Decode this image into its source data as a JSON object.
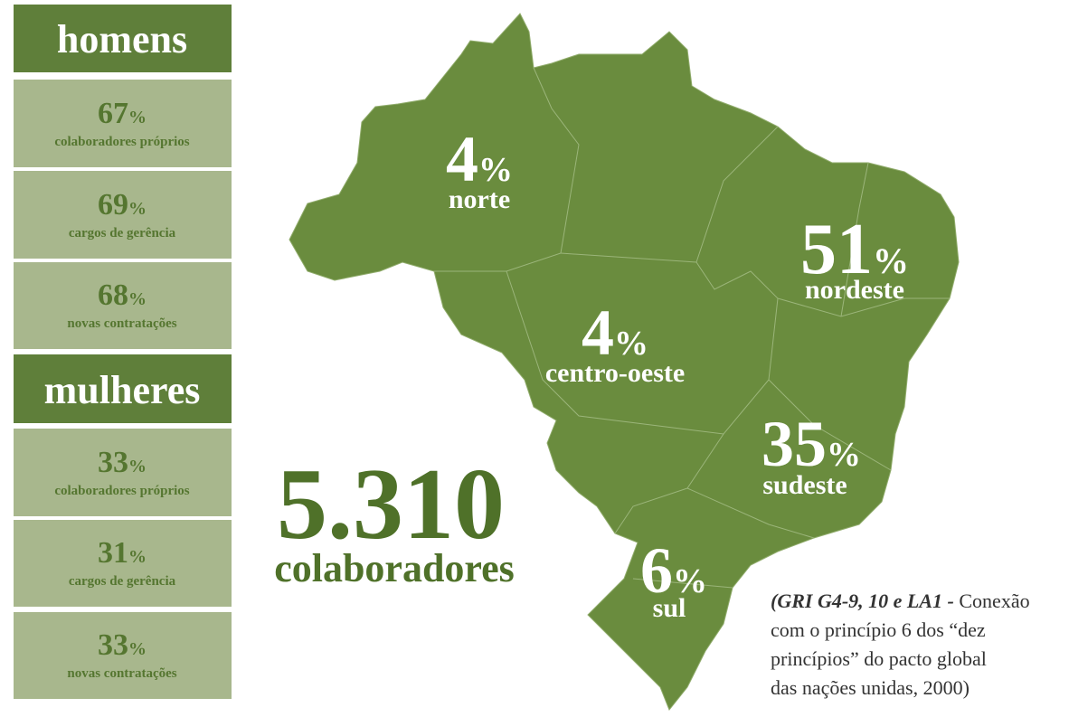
{
  "men": {
    "heading": "homens",
    "items": [
      {
        "value": "67",
        "unit": "%",
        "label": "colaboradores próprios"
      },
      {
        "value": "69",
        "unit": "%",
        "label": "cargos de gerência"
      },
      {
        "value": "68",
        "unit": "%",
        "label": "novas contratações"
      }
    ]
  },
  "women": {
    "heading": "mulheres",
    "items": [
      {
        "value": "33",
        "unit": "%",
        "label": "colaboradores próprios"
      },
      {
        "value": "31",
        "unit": "%",
        "label": "cargos de gerência"
      },
      {
        "value": "33",
        "unit": "%",
        "label": "novas contratações"
      }
    ]
  },
  "total": {
    "value": "5.310",
    "label": "colaboradores"
  },
  "regions": [
    {
      "value": "4",
      "unit": "%",
      "name": "norte"
    },
    {
      "value": "4",
      "unit": "%",
      "name": "centro-oeste"
    },
    {
      "value": "51",
      "unit": "%",
      "name": "nordeste"
    },
    {
      "value": "35",
      "unit": "%",
      "name": "sudeste"
    },
    {
      "value": "6",
      "unit": "%",
      "name": "sul"
    }
  ],
  "note": {
    "emphasis": "(GRI G4-9, 10 e LA1 -",
    "lines": [
      " Conexão",
      "com o princípio 6 dos “dez",
      "princípios” do pacto global",
      "das nações unidas, 2000)"
    ]
  }
}
